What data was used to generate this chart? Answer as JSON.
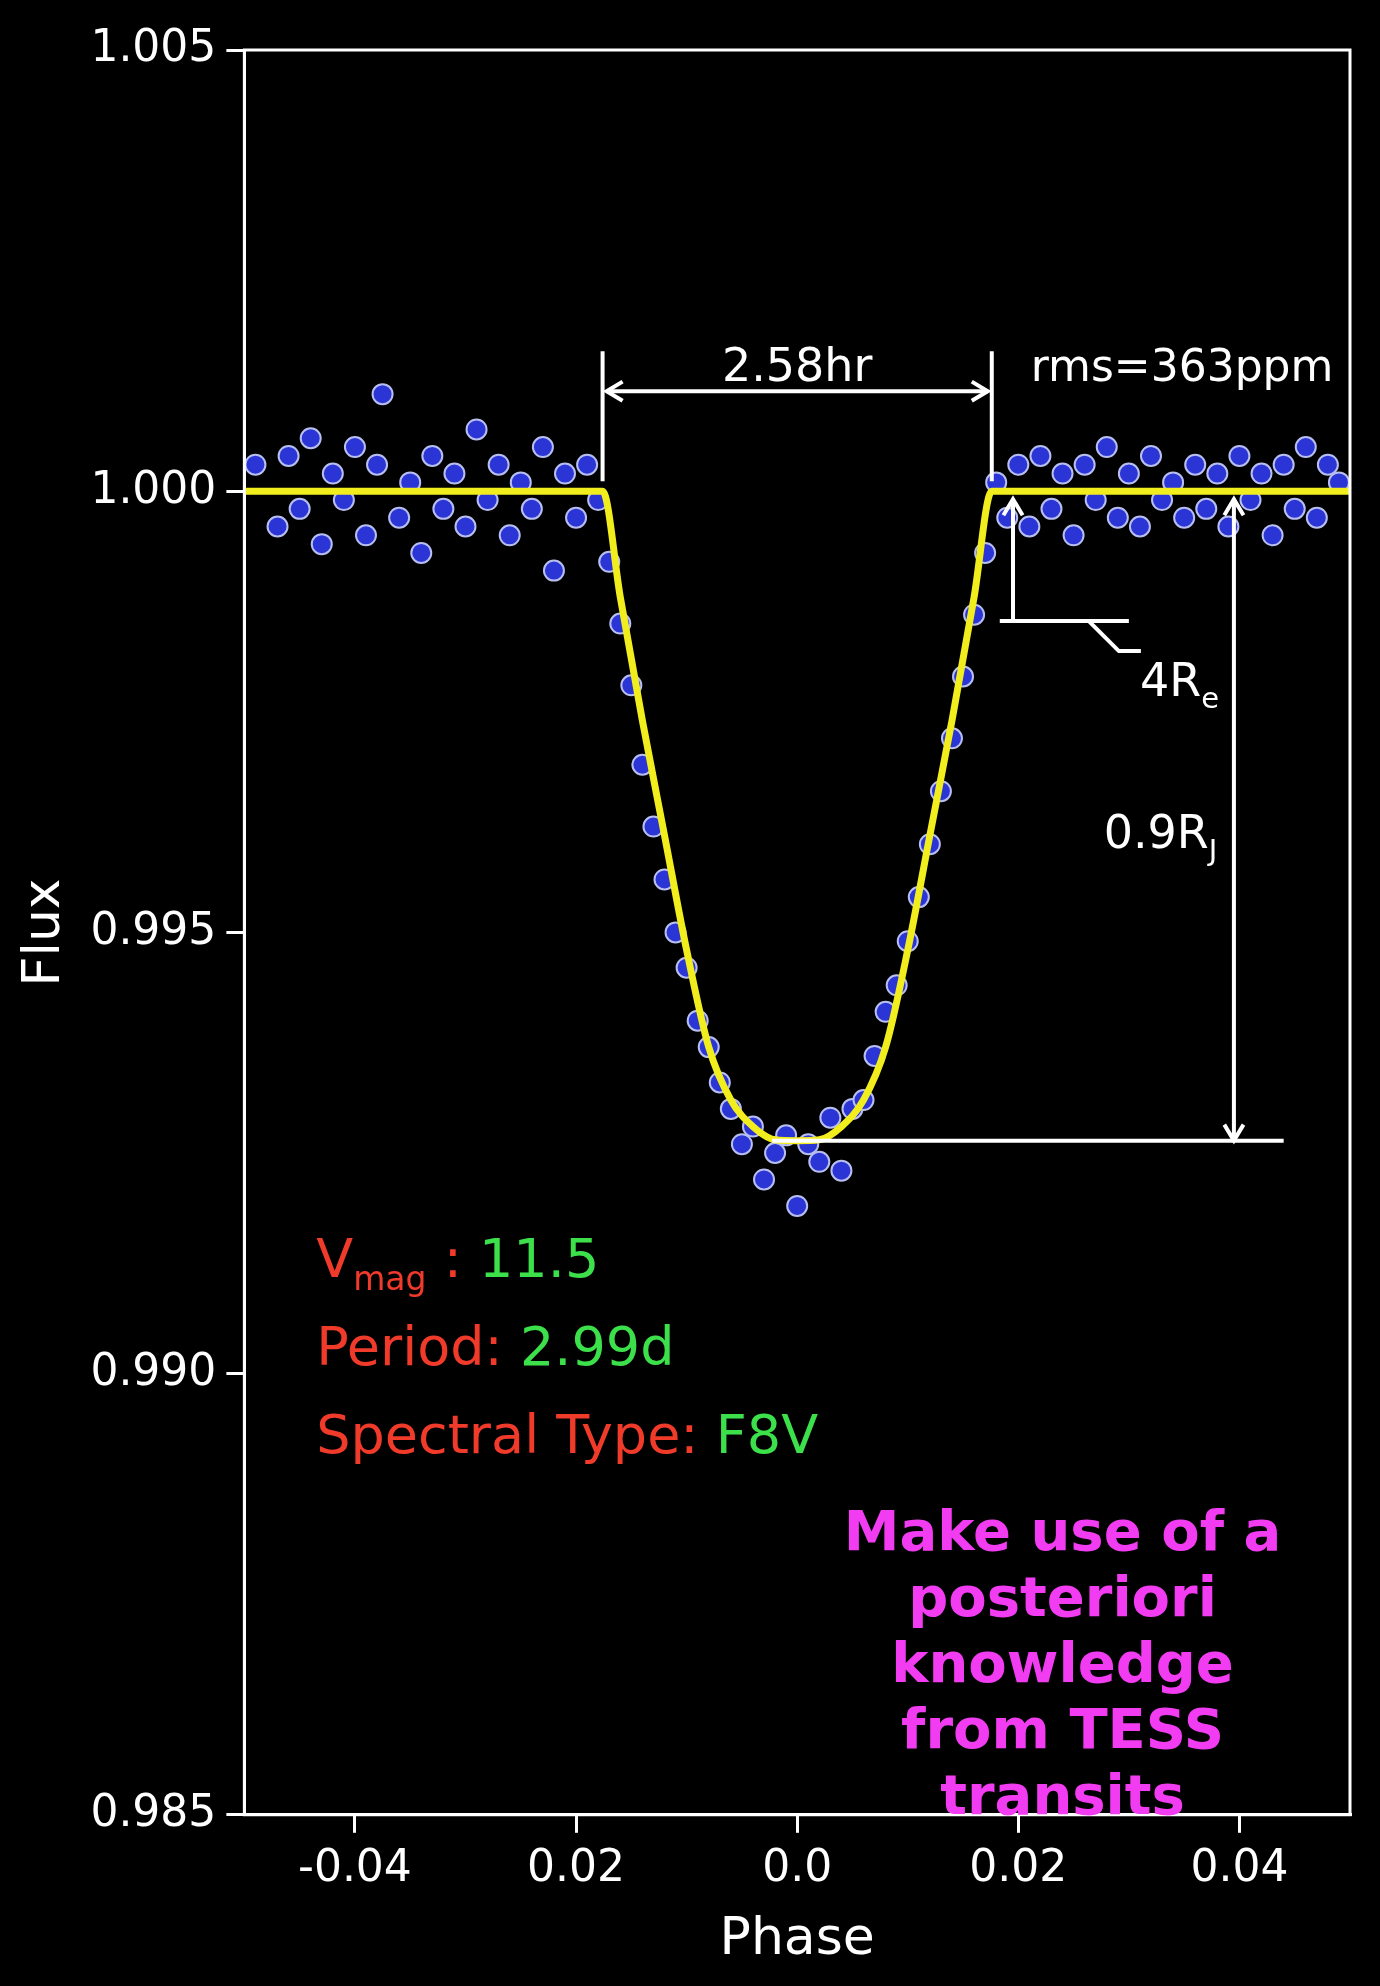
{
  "chart_data": {
    "type": "scatter",
    "xlabel": "Phase",
    "ylabel": "Flux",
    "xlim": [
      -0.05,
      0.05
    ],
    "xticks": [
      -0.04,
      {
        "value": -0.02,
        "label": "0.02"
      },
      {
        "value": 0,
        "label": "0.0"
      },
      0.02,
      0.04
    ],
    "ylim": [
      0.985,
      1.005
    ],
    "yticks": [
      0.985,
      {
        "value": 0.99,
        "label": "0.990"
      },
      0.995,
      {
        "value": 1,
        "label": "1.000"
      },
      1.005
    ],
    "grid": false,
    "legend": false,
    "series": [
      {
        "type": "scatter",
        "color": "#2b35d6",
        "marker": "circle",
        "x": [
          -0.049,
          -0.047,
          -0.046,
          -0.045,
          -0.044,
          -0.043,
          -0.042,
          -0.041,
          -0.04,
          -0.039,
          -0.038,
          -0.0375,
          -0.036,
          -0.035,
          -0.034,
          -0.033,
          -0.032,
          -0.031,
          -0.03,
          -0.029,
          -0.028,
          -0.027,
          -0.026,
          -0.025,
          -0.024,
          -0.023,
          -0.022,
          -0.021,
          -0.02,
          -0.019,
          -0.018,
          -0.017,
          -0.016,
          -0.015,
          -0.014,
          -0.013,
          -0.012,
          -0.011,
          -0.01,
          -0.009,
          -0.008,
          -0.007,
          -0.006,
          -0.005,
          -0.004,
          -0.003,
          -0.002,
          -0.001,
          0,
          0.001,
          0.002,
          0.003,
          0.004,
          0.005,
          0.006,
          0.007,
          0.008,
          0.009,
          0.01,
          0.011,
          0.012,
          0.013,
          0.014,
          0.015,
          0.016,
          0.017,
          0.018,
          0.019,
          0.02,
          0.021,
          0.022,
          0.023,
          0.024,
          0.025,
          0.026,
          0.027,
          0.028,
          0.029,
          0.03,
          0.031,
          0.032,
          0.033,
          0.034,
          0.035,
          0.036,
          0.037,
          0.038,
          0.039,
          0.04,
          0.041,
          0.042,
          0.043,
          0.044,
          0.045,
          0.046,
          0.047,
          0.048,
          0.049
        ],
        "values": [
          1.0003,
          0.9996,
          1.0004,
          0.9998,
          1.0006,
          0.9994,
          1.0002,
          0.9999,
          1.0005,
          0.9995,
          1.0003,
          1.0011,
          0.9997,
          1.0001,
          0.9993,
          1.0004,
          0.9998,
          1.0002,
          0.9996,
          1.0007,
          0.9999,
          1.0003,
          0.9995,
          1.0001,
          0.9998,
          1.0005,
          0.9991,
          1.0002,
          0.9997,
          1.0003,
          0.9999,
          0.9992,
          0.9985,
          0.9978,
          0.9969,
          0.9962,
          0.9956,
          0.995,
          0.9946,
          0.994,
          0.9937,
          0.9933,
          0.993,
          0.9926,
          0.9928,
          0.9922,
          0.9925,
          0.9927,
          0.9919,
          0.9926,
          0.9924,
          0.9929,
          0.9923,
          0.993,
          0.9931,
          0.9936,
          0.9941,
          0.9944,
          0.9949,
          0.9954,
          0.996,
          0.9966,
          0.9972,
          0.9979,
          0.9986,
          0.9993,
          1.0001,
          0.9997,
          1.0003,
          0.9996,
          1.0004,
          0.9998,
          1.0002,
          0.9995,
          1.0003,
          0.9999,
          1.0005,
          0.9997,
          1.0002,
          0.9996,
          1.0004,
          0.9999,
          1.0001,
          0.9997,
          1.0003,
          0.9998,
          1.0002,
          0.9996,
          1.0004,
          0.9999,
          1.0002,
          0.9995,
          1.0003,
          0.9998,
          1.0005,
          0.9997,
          1.0003,
          1.0001
        ]
      },
      {
        "type": "line",
        "color": "#f2ee1e",
        "marker": "none",
        "x": [
          -0.05,
          -0.0176,
          -0.016,
          -0.014,
          -0.012,
          -0.01,
          -0.008,
          -0.006,
          -0.004,
          -0.002,
          0,
          0.002,
          0.004,
          0.006,
          0.008,
          0.01,
          0.012,
          0.014,
          0.016,
          0.0176,
          0.05
        ],
        "values": [
          1,
          1,
          0.9988,
          0.9974,
          0.9961,
          0.9948,
          0.9937,
          0.9931,
          0.9928,
          0.99265,
          0.99264,
          0.99265,
          0.9928,
          0.9931,
          0.9937,
          0.9948,
          0.9961,
          0.9974,
          0.9988,
          1,
          1
        ]
      }
    ],
    "annotations": [
      "2.58hr",
      "rms=363ppm",
      "4R$_{e}$",
      "0.9R$_{J}$",
      "V$_{mag}$ : 11.5",
      "Period: 2.99d",
      "Spectral Type: F8V",
      "Make use of a posteriori knowledge from TESS transits"
    ]
  }
}
